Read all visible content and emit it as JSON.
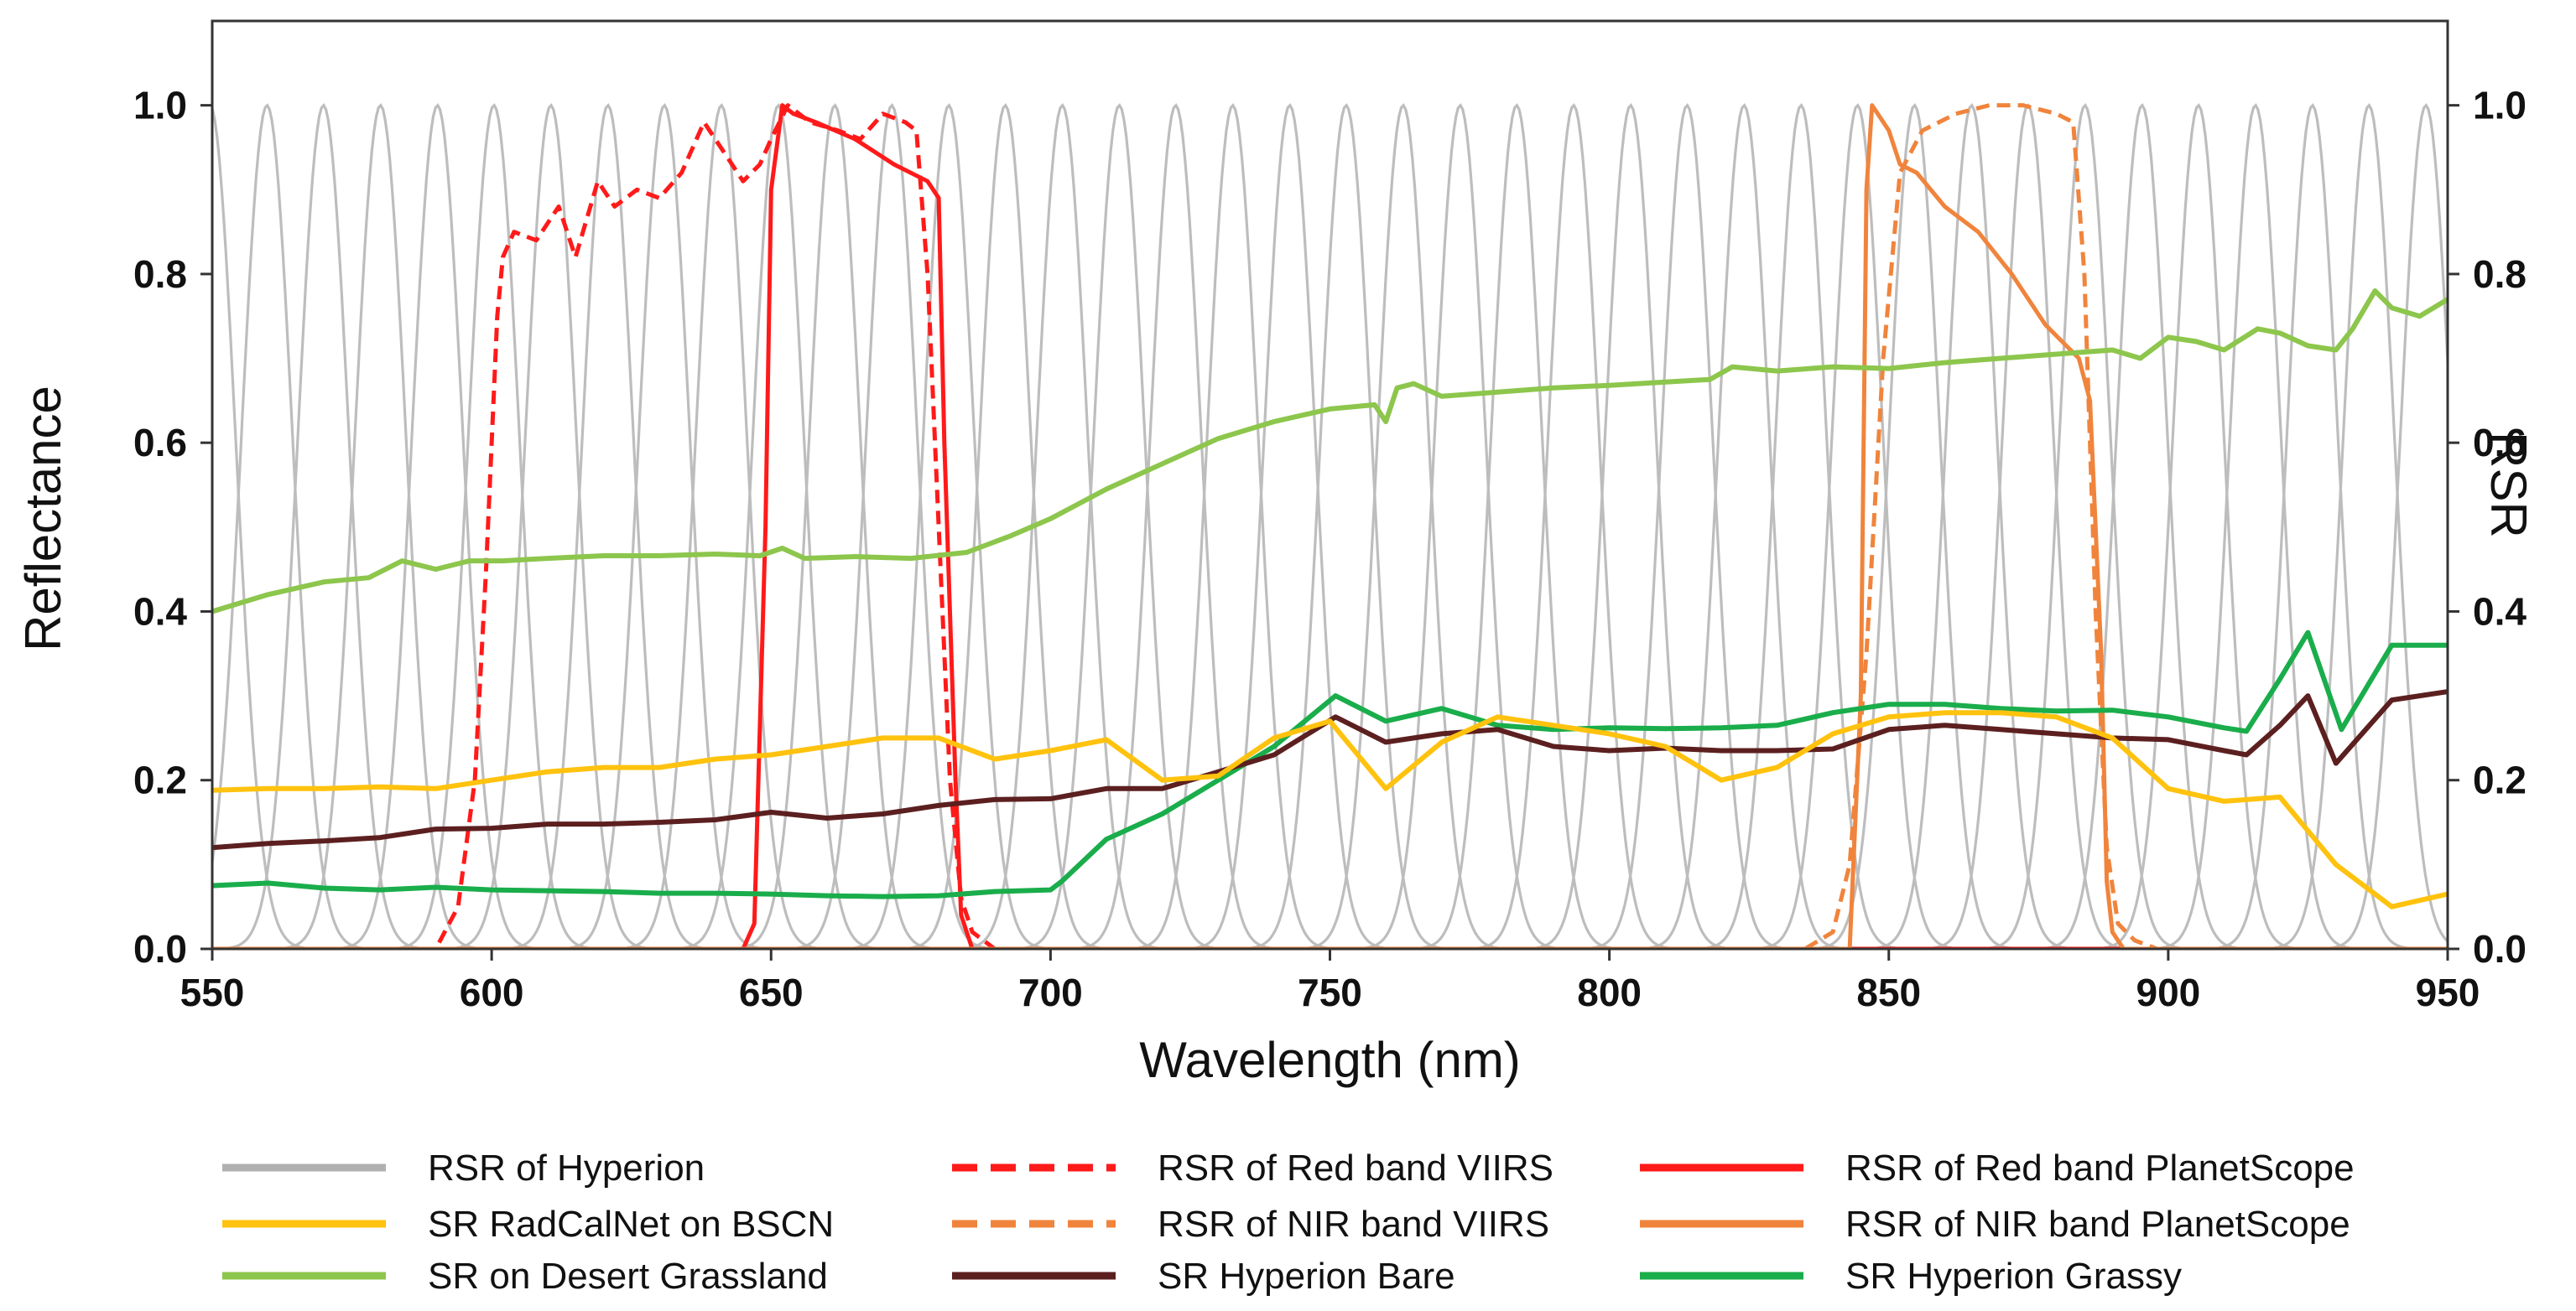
{
  "chart_data": {
    "type": "line",
    "title": "",
    "xlabel": "Wavelength (nm)",
    "ylabel": "Reflectance",
    "y2label": "RSR",
    "xlim": [
      550,
      950
    ],
    "ylim": [
      0,
      1.1
    ],
    "y2lim": [
      0,
      1.1
    ],
    "x_ticks": [
      550,
      600,
      650,
      700,
      750,
      800,
      850,
      900,
      950
    ],
    "y_ticks": [
      "0.0",
      "0.2",
      "0.4",
      "0.6",
      "0.8",
      "1.0"
    ],
    "y2_ticks": [
      "0.0",
      "0.2",
      "0.4",
      "0.6",
      "0.8",
      "1.0"
    ],
    "grid": false,
    "hyperion_rsr": {
      "name": "RSR of Hyperion",
      "color": "#bdbdbd",
      "centers": [
        549.6,
        559.8,
        569.9,
        580.1,
        590.3,
        600.4,
        610.6,
        620.8,
        630.9,
        641.1,
        651.3,
        661.4,
        671.6,
        681.8,
        691.9,
        702.1,
        712.3,
        722.4,
        732.6,
        742.8,
        752.9,
        763.1,
        773.3,
        783.4,
        793.6,
        803.8,
        813.9,
        824.1,
        834.3,
        844.4,
        854.6,
        864.8,
        874.9,
        885.1,
        895.3,
        905.4,
        915.6,
        925.8,
        935.9,
        946.1
      ],
      "fwhm": 10.8,
      "peak": 1.0
    },
    "series": [
      {
        "name": "RSR of Red band VIIRS",
        "color": "#ff1a1a",
        "style": "dashed",
        "axis": "right",
        "x": [
          550,
          590,
          594,
          597,
          599,
          601,
          602,
          604,
          608,
          612,
          615,
          619,
          622,
          626,
          630,
          634,
          638,
          642,
          645,
          648,
          650,
          653,
          657,
          662,
          666,
          670,
          674,
          676,
          678,
          680,
          682,
          684,
          686,
          690,
          700,
          950
        ],
        "y": [
          0,
          0.0,
          0.05,
          0.2,
          0.45,
          0.75,
          0.82,
          0.85,
          0.84,
          0.88,
          0.82,
          0.91,
          0.88,
          0.9,
          0.89,
          0.92,
          0.98,
          0.94,
          0.91,
          0.93,
          0.96,
          1.0,
          0.98,
          0.97,
          0.96,
          0.99,
          0.98,
          0.97,
          0.8,
          0.5,
          0.2,
          0.06,
          0.02,
          0.0,
          0,
          0
        ]
      },
      {
        "name": "RSR of NIR band VIIRS",
        "color": "#f0843c",
        "style": "dashed",
        "axis": "right",
        "x": [
          550,
          835,
          840,
          843,
          846,
          849,
          852,
          856,
          862,
          868,
          874,
          880,
          883,
          885,
          887,
          889,
          891,
          894,
          898,
          950
        ],
        "y": [
          0,
          0,
          0.02,
          0.1,
          0.35,
          0.7,
          0.92,
          0.97,
          0.99,
          1.0,
          1.0,
          0.99,
          0.98,
          0.8,
          0.4,
          0.12,
          0.03,
          0.01,
          0,
          0
        ]
      },
      {
        "name": "RSR of Red band PlanetScope",
        "color": "#ff1a1a",
        "style": "solid",
        "axis": "right",
        "x": [
          550,
          645,
          647,
          649,
          650,
          652,
          654,
          658,
          665,
          672,
          678,
          680,
          681,
          683,
          684,
          686,
          950
        ],
        "y": [
          0,
          0,
          0.03,
          0.5,
          0.9,
          1.0,
          0.99,
          0.98,
          0.96,
          0.93,
          0.91,
          0.89,
          0.6,
          0.2,
          0.04,
          0,
          0
        ]
      },
      {
        "name": "RSR of NIR band PlanetScope",
        "color": "#f0843c",
        "style": "solid",
        "axis": "right",
        "x": [
          550,
          843,
          845,
          846,
          847,
          850,
          852,
          855,
          860,
          866,
          872,
          878,
          884,
          886,
          888,
          889,
          890,
          892,
          950
        ],
        "y": [
          0,
          0,
          0.3,
          0.9,
          1.0,
          0.97,
          0.93,
          0.92,
          0.88,
          0.85,
          0.8,
          0.74,
          0.7,
          0.65,
          0.35,
          0.08,
          0.02,
          0,
          0
        ]
      },
      {
        "name": "SR Hyperion Grassy",
        "color": "#1aad4b",
        "style": "solid",
        "axis": "left",
        "x": [
          550,
          560,
          570,
          580,
          590,
          600,
          610,
          620,
          630,
          640,
          650,
          660,
          670,
          680,
          690,
          700,
          702,
          710,
          720,
          730,
          740,
          751,
          760,
          770,
          780,
          790,
          800,
          810,
          820,
          830,
          840,
          850,
          860,
          870,
          880,
          890,
          900,
          910,
          914,
          920,
          925,
          931,
          940,
          950
        ],
        "y": [
          0.075,
          0.078,
          0.072,
          0.07,
          0.073,
          0.07,
          0.069,
          0.068,
          0.066,
          0.066,
          0.065,
          0.063,
          0.062,
          0.063,
          0.068,
          0.07,
          0.08,
          0.13,
          0.16,
          0.2,
          0.24,
          0.3,
          0.27,
          0.285,
          0.265,
          0.26,
          0.262,
          0.261,
          0.262,
          0.265,
          0.28,
          0.29,
          0.29,
          0.285,
          0.282,
          0.283,
          0.275,
          0.262,
          0.258,
          0.32,
          0.375,
          0.26,
          0.36,
          0.36
        ]
      },
      {
        "name": "SR Hyperion Bare",
        "color": "#5c1f1f",
        "style": "solid",
        "axis": "left",
        "x": [
          550,
          560,
          570,
          580,
          590,
          600,
          610,
          620,
          630,
          640,
          650,
          660,
          670,
          680,
          690,
          700,
          710,
          720,
          730,
          740,
          751,
          760,
          770,
          780,
          790,
          800,
          810,
          820,
          830,
          840,
          850,
          860,
          870,
          880,
          890,
          900,
          910,
          914,
          920,
          925,
          930,
          940,
          950
        ],
        "y": [
          0.12,
          0.125,
          0.128,
          0.132,
          0.142,
          0.143,
          0.148,
          0.148,
          0.15,
          0.153,
          0.162,
          0.155,
          0.16,
          0.17,
          0.177,
          0.178,
          0.19,
          0.19,
          0.21,
          0.23,
          0.275,
          0.245,
          0.255,
          0.26,
          0.24,
          0.235,
          0.238,
          0.235,
          0.235,
          0.237,
          0.26,
          0.265,
          0.26,
          0.255,
          0.25,
          0.248,
          0.235,
          0.23,
          0.265,
          0.3,
          0.22,
          0.295,
          0.305
        ]
      },
      {
        "name": "SR RadCalNet on BSCN",
        "color": "#ffc20e",
        "style": "solid",
        "axis": "left",
        "x": [
          550,
          560,
          570,
          580,
          590,
          600,
          610,
          620,
          630,
          640,
          650,
          660,
          670,
          680,
          690,
          700,
          710,
          720,
          730,
          740,
          750,
          760,
          770,
          780,
          790,
          800,
          810,
          820,
          830,
          840,
          850,
          860,
          870,
          880,
          890,
          900,
          910,
          920,
          930,
          940,
          950
        ],
        "y": [
          0.188,
          0.19,
          0.19,
          0.192,
          0.19,
          0.2,
          0.21,
          0.215,
          0.215,
          0.225,
          0.23,
          0.24,
          0.25,
          0.25,
          0.225,
          0.235,
          0.248,
          0.2,
          0.205,
          0.25,
          0.27,
          0.19,
          0.245,
          0.275,
          0.265,
          0.255,
          0.24,
          0.2,
          0.215,
          0.255,
          0.275,
          0.28,
          0.28,
          0.275,
          0.25,
          0.19,
          0.175,
          0.18,
          0.1,
          0.05,
          0.065
        ]
      },
      {
        "name": "SR on Desert Grassland",
        "color": "#8dc64c",
        "style": "solid",
        "axis": "left",
        "x": [
          550,
          560,
          570,
          578,
          584,
          590,
          596,
          602,
          610,
          620,
          630,
          640,
          648,
          652,
          656,
          665,
          675,
          685,
          693,
          700,
          710,
          720,
          730,
          740,
          750,
          758,
          760,
          762,
          765,
          770,
          780,
          790,
          800,
          810,
          818,
          822,
          830,
          840,
          850,
          860,
          870,
          880,
          890,
          895,
          900,
          905,
          910,
          916,
          920,
          925,
          930,
          933,
          937,
          940,
          945,
          950
        ],
        "y": [
          0.4,
          0.42,
          0.435,
          0.44,
          0.46,
          0.45,
          0.46,
          0.46,
          0.463,
          0.466,
          0.466,
          0.468,
          0.466,
          0.475,
          0.463,
          0.465,
          0.463,
          0.47,
          0.49,
          0.51,
          0.545,
          0.575,
          0.605,
          0.625,
          0.64,
          0.645,
          0.625,
          0.665,
          0.67,
          0.655,
          0.66,
          0.665,
          0.668,
          0.672,
          0.675,
          0.69,
          0.685,
          0.69,
          0.688,
          0.695,
          0.7,
          0.705,
          0.71,
          0.7,
          0.725,
          0.72,
          0.71,
          0.735,
          0.73,
          0.715,
          0.71,
          0.735,
          0.78,
          0.76,
          0.75,
          0.77
        ]
      }
    ],
    "legend": {
      "placement": "bottom",
      "items": [
        {
          "label": "RSR of Hyperion",
          "color": "#b0b0b0",
          "style": "solid"
        },
        {
          "label": "RSR of Red band VIIRS",
          "color": "#ff1a1a",
          "style": "dashed"
        },
        {
          "label": "RSR of Red band PlanetScope",
          "color": "#ff1a1a",
          "style": "solid"
        },
        {
          "label": "SR RadCalNet on BSCN",
          "color": "#ffc20e",
          "style": "solid"
        },
        {
          "label": "RSR of NIR band VIIRS",
          "color": "#f0843c",
          "style": "dashed"
        },
        {
          "label": "RSR of NIR band PlanetScope",
          "color": "#f0843c",
          "style": "solid"
        },
        {
          "label": "SR on Desert Grassland",
          "color": "#8dc64c",
          "style": "solid"
        },
        {
          "label": "SR Hyperion Bare",
          "color": "#5c1f1f",
          "style": "solid"
        },
        {
          "label": "SR Hyperion Grassy",
          "color": "#1aad4b",
          "style": "solid"
        }
      ]
    }
  }
}
